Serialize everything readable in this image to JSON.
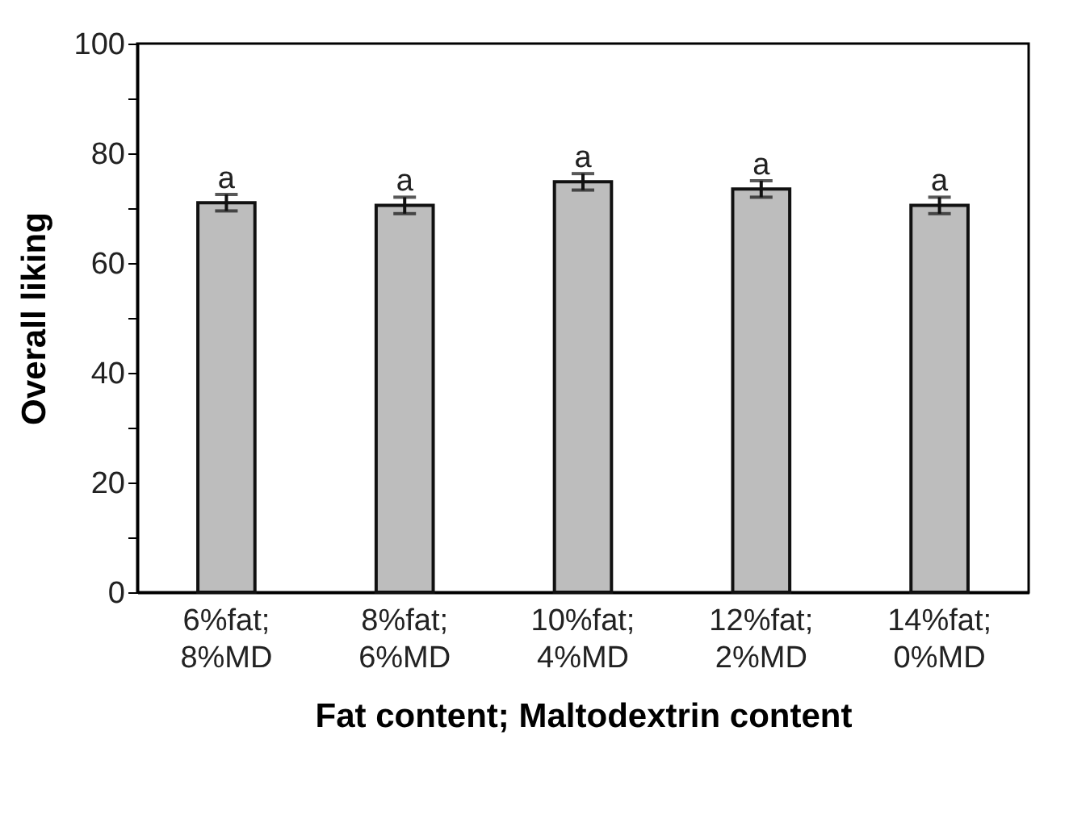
{
  "chart_data": {
    "type": "bar",
    "xlabel": "Fat content; Maltodextrin content",
    "ylabel": "Overall liking",
    "categories": [
      "6%fat;\n8%MD",
      "8%fat;\n6%MD",
      "10%fat;\n4%MD",
      "12%fat;\n2%MD",
      "14%fat;\n0%MD"
    ],
    "values": [
      71,
      70.5,
      74.8,
      73.5,
      70.5
    ],
    "errors": [
      1.5,
      1.5,
      1.5,
      1.5,
      1.5
    ],
    "color": "#bdbdbd",
    "ylim": [
      0,
      100
    ],
    "yticks": [
      0,
      {
        "value": 10,
        "label": null
      },
      20,
      {
        "value": 30,
        "label": null
      },
      40,
      {
        "value": 50,
        "label": null
      },
      60,
      {
        "value": 70,
        "label": null
      },
      80,
      {
        "value": 90,
        "label": null
      },
      100
    ],
    "grid": false,
    "annotations": [
      {
        "text": "a",
        "x": "6%fat;\n8%MD",
        "y": 72.5
      },
      {
        "text": "a",
        "x": "8%fat;\n6%MD",
        "y": 72
      },
      {
        "text": "a",
        "x": "10%fat;\n4%MD",
        "y": 76.3
      },
      {
        "text": "a",
        "x": "12%fat;\n2%MD",
        "y": 75
      },
      {
        "text": "a",
        "x": "14%fat;\n0%MD",
        "y": 72
      }
    ]
  }
}
